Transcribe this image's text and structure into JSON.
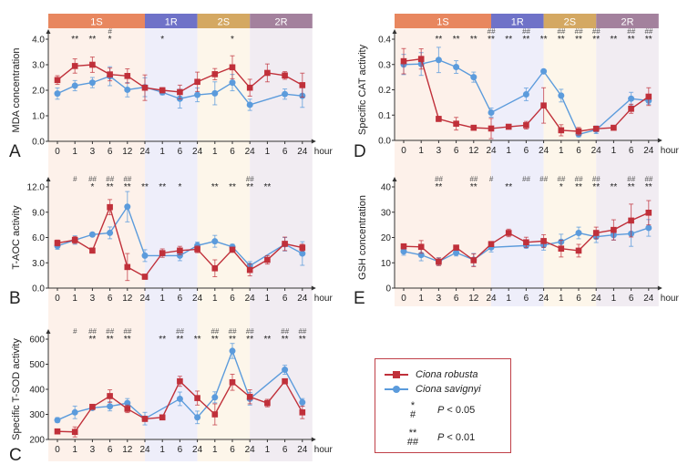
{
  "colors": {
    "robusta": "#c0303a",
    "savignyi": "#5b9bdc",
    "phase_header": {
      "1S": "#e8875f",
      "1R": "#6f72c8",
      "2S": "#d4a862",
      "2R": "#a3819d"
    },
    "phase_bg": {
      "1S": "#fdf1ea",
      "1R": "#eeeefa",
      "2S": "#fdf6ea",
      "2R": "#f1ecf2"
    }
  },
  "phases": [
    {
      "label": "1S",
      "from": 0,
      "to": 5
    },
    {
      "label": "1R",
      "from": 5,
      "to": 8
    },
    {
      "label": "2S",
      "from": 8,
      "to": 11
    },
    {
      "label": "2R",
      "from": 11,
      "to": 14
    }
  ],
  "legend": {
    "robusta": "Ciona robusta",
    "savignyi": "Ciona savignyi",
    "sig1_star": "*",
    "sig1_hash": "#",
    "sig1_p": "P",
    "sig1_text": " < 0.05",
    "sig2_star": "**",
    "sig2_hash": "##",
    "sig2_p": "P",
    "sig2_text": " < 0.01"
  },
  "chart_data": [
    {
      "panel": "A",
      "type": "line",
      "ylabel": "MDA concentration",
      "xlabel": "hour",
      "ylim": [
        0,
        4
      ],
      "yticks": [
        0,
        1,
        2,
        3,
        4
      ],
      "ytick_labels": [
        "0.0",
        "1.0",
        "2.0",
        "3.0",
        "4.0"
      ],
      "categories": [
        "0",
        "1",
        "3",
        "6",
        "12",
        "24",
        "1",
        "6",
        "24",
        "1",
        "6",
        "24",
        "1",
        "6",
        "24"
      ],
      "series": [
        {
          "name": "Ciona robusta",
          "marker": "square",
          "values": [
            2.4,
            2.95,
            3.0,
            2.62,
            2.56,
            2.1,
            2.0,
            1.93,
            2.33,
            2.63,
            2.9,
            2.1,
            2.68,
            2.58,
            2.2
          ],
          "errors": [
            0.17,
            0.28,
            0.3,
            0.25,
            0.28,
            0.5,
            0.1,
            0.27,
            0.38,
            0.22,
            0.45,
            0.33,
            0.35,
            0.15,
            0.47
          ]
        },
        {
          "name": "Ciona savignyi",
          "marker": "circle",
          "values": [
            1.87,
            2.18,
            2.3,
            2.55,
            2.02,
            2.12,
            1.92,
            1.67,
            1.82,
            1.88,
            2.3,
            1.43,
            null,
            1.85,
            1.78
          ],
          "errors": [
            0.22,
            0.2,
            0.2,
            0.37,
            0.28,
            0.37,
            0.1,
            0.37,
            0.27,
            0.45,
            0.32,
            0.22,
            0,
            0.2,
            0.45
          ]
        }
      ],
      "stars": [
        "",
        "**",
        "**",
        "*",
        "",
        "",
        "*",
        "",
        "",
        "",
        "*",
        "",
        "",
        "",
        ""
      ],
      "hashes": [
        "",
        "",
        "",
        "#",
        "",
        "",
        "",
        "",
        "",
        "",
        "",
        "",
        "",
        "",
        ""
      ]
    },
    {
      "panel": "B",
      "type": "line",
      "ylabel": "T-AOC activity",
      "xlabel": "hour",
      "ylim": [
        0,
        12
      ],
      "yticks": [
        0,
        3,
        6,
        9,
        12
      ],
      "ytick_labels": [
        "0.0",
        "3.0",
        "6.0",
        "9.0",
        "12.0"
      ],
      "categories": [
        "0",
        "1",
        "3",
        "6",
        "12",
        "24",
        "1",
        "6",
        "24",
        "1",
        "6",
        "24",
        "1",
        "6",
        "24"
      ],
      "series": [
        {
          "name": "Ciona robusta",
          "marker": "square",
          "values": [
            5.35,
            5.7,
            4.45,
            9.6,
            2.5,
            1.35,
            4.15,
            4.45,
            4.6,
            2.35,
            4.55,
            2.15,
            3.35,
            5.25,
            4.8
          ],
          "errors": [
            0.35,
            0.4,
            0.3,
            0.9,
            1.6,
            0.3,
            0.5,
            0.5,
            0.4,
            1.0,
            0.3,
            0.7,
            0.5,
            0.8,
            0.4
          ]
        },
        {
          "name": "Ciona savignyi",
          "marker": "circle",
          "values": [
            5.0,
            5.7,
            6.35,
            6.55,
            9.65,
            3.85,
            null,
            3.85,
            5.05,
            5.55,
            4.9,
            2.65,
            null,
            5.2,
            4.1
          ],
          "errors": [
            0.4,
            0.5,
            0.2,
            0.7,
            1.8,
            0.7,
            0,
            0.6,
            0.4,
            0.7,
            0.3,
            0.5,
            0,
            0.8,
            1.4
          ]
        }
      ],
      "stars": [
        "",
        "",
        "*",
        "**",
        "**",
        "**",
        "**",
        "*",
        "",
        "**",
        "**",
        "**",
        "**",
        "",
        ""
      ],
      "hashes": [
        "",
        "#",
        "##",
        "##",
        "##",
        "",
        "",
        "",
        "",
        "",
        "",
        "##",
        "",
        "",
        ""
      ]
    },
    {
      "panel": "C",
      "type": "line",
      "ylabel": "Specific T-SOD activity",
      "xlabel": "hour",
      "ylim": [
        200,
        600
      ],
      "yticks": [
        200,
        300,
        400,
        500,
        600
      ],
      "ytick_labels": [
        "200",
        "300",
        "400",
        "500",
        "600"
      ],
      "categories": [
        "0",
        "1",
        "3",
        "6",
        "12",
        "24",
        "1",
        "6",
        "24",
        "1",
        "6",
        "24",
        "1",
        "6",
        "24"
      ],
      "series": [
        {
          "name": "Ciona robusta",
          "marker": "square",
          "values": [
            232,
            230,
            330,
            373,
            322,
            282,
            288,
            432,
            365,
            300,
            428,
            370,
            345,
            432,
            308
          ],
          "errors": [
            5,
            20,
            5,
            25,
            15,
            10,
            8,
            20,
            28,
            42,
            32,
            28,
            15,
            5,
            25
          ]
        },
        {
          "name": "Ciona savignyi",
          "marker": "circle",
          "values": [
            277,
            308,
            326,
            332,
            345,
            283,
            null,
            362,
            288,
            368,
            553,
            362,
            null,
            478,
            348
          ],
          "errors": [
            10,
            25,
            8,
            18,
            18,
            25,
            0,
            27,
            25,
            22,
            30,
            25,
            0,
            18,
            15
          ]
        }
      ],
      "stars": [
        "",
        "",
        "**",
        "**",
        "**",
        "",
        "**",
        "**",
        "**",
        "**",
        "**",
        "**",
        "**",
        "**",
        "**"
      ],
      "hashes": [
        "",
        "#",
        "##",
        "##",
        "##",
        "",
        "",
        "##",
        "",
        "##",
        "##",
        "##",
        "",
        "##",
        "##"
      ]
    },
    {
      "panel": "D",
      "type": "line",
      "ylabel": "Specific CAT activity",
      "xlabel": "hour",
      "ylim": [
        0,
        0.4
      ],
      "yticks": [
        0,
        0.1,
        0.2,
        0.3,
        0.4
      ],
      "ytick_labels": [
        "0.0",
        "0.1",
        "0.2",
        "0.3",
        "0.4"
      ],
      "categories": [
        "0",
        "1",
        "3",
        "6",
        "12",
        "24",
        "1",
        "6",
        "24",
        "1",
        "6",
        "24",
        "1",
        "6",
        "24"
      ],
      "series": [
        {
          "name": "Ciona robusta",
          "marker": "square",
          "values": [
            0.313,
            0.322,
            0.085,
            0.066,
            0.05,
            0.047,
            0.054,
            0.06,
            0.138,
            0.04,
            0.036,
            0.046,
            0.05,
            0.125,
            0.173
          ],
          "errors": [
            0.05,
            0.04,
            0.01,
            0.025,
            0.005,
            0.04,
            0.008,
            0.015,
            0.07,
            0.022,
            0.015,
            0.01,
            0.008,
            0.018,
            0.035
          ]
        },
        {
          "name": "Ciona savignyi",
          "marker": "circle",
          "values": [
            0.3,
            0.302,
            0.318,
            0.29,
            0.25,
            0.11,
            null,
            0.182,
            0.273,
            0.177,
            0.024,
            0.042,
            null,
            0.165,
            0.157
          ],
          "errors": [
            0.04,
            0.045,
            0.05,
            0.025,
            0.02,
            0.018,
            0,
            0.025,
            0.006,
            0.025,
            0.01,
            0.015,
            0,
            0.025,
            0.015
          ]
        }
      ],
      "stars": [
        "",
        "",
        "**",
        "**",
        "**",
        "**",
        "**",
        "**",
        "**",
        "**",
        "**",
        "**",
        "**",
        "**",
        "**"
      ],
      "hashes": [
        "",
        "",
        "",
        "",
        "",
        "##",
        "",
        "##",
        "",
        "##",
        "##",
        "##",
        "",
        "##",
        "##"
      ]
    },
    {
      "panel": "E",
      "type": "line",
      "ylabel": "GSH concentration",
      "xlabel": "hour",
      "ylim": [
        0,
        40
      ],
      "yticks": [
        0,
        10,
        20,
        30,
        40
      ],
      "ytick_labels": [
        "0",
        "10",
        "20",
        "30",
        "40"
      ],
      "categories": [
        "0",
        "1",
        "3",
        "6",
        "12",
        "24",
        "1",
        "6",
        "24",
        "1",
        "6",
        "24",
        "1",
        "6",
        "24"
      ],
      "series": [
        {
          "name": "Ciona robusta",
          "marker": "square",
          "values": [
            16.5,
            16.3,
            10.4,
            16,
            11,
            17.4,
            21.8,
            18.1,
            18.6,
            15.6,
            14.8,
            21.8,
            23,
            26.7,
            29.8
          ],
          "errors": [
            0.6,
            2.5,
            1.5,
            0.5,
            2.5,
            1,
            1.5,
            2,
            2.5,
            3.3,
            2.5,
            2.3,
            4,
            6.5,
            4.8
          ]
        },
        {
          "name": "Ciona savignyi",
          "marker": "circle",
          "values": [
            14.5,
            13.1,
            10.5,
            14,
            11.2,
            16.1,
            null,
            16.8,
            17,
            18.3,
            21.8,
            20.3,
            21,
            21.5,
            23.8
          ],
          "errors": [
            1.5,
            2.3,
            1.5,
            1.3,
            2.5,
            1.8,
            0,
            1,
            2,
            3,
            2.3,
            2.3,
            2,
            5,
            3.3
          ]
        }
      ],
      "stars": [
        "",
        "",
        "**",
        "",
        "**",
        "",
        "**",
        "",
        "",
        "*",
        "**",
        "**",
        "**",
        "**",
        "**"
      ],
      "hashes": [
        "",
        "",
        "##",
        "",
        "##",
        "#",
        "",
        "##",
        "##",
        "##",
        "##",
        "##",
        "",
        "##",
        "##"
      ]
    }
  ]
}
